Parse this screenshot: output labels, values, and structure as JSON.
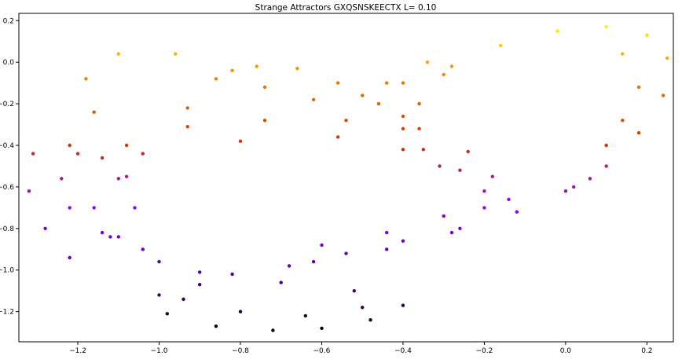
{
  "chart_data": {
    "type": "scatter",
    "title": "Strange Attractors     GXQSNSKEECTX     L= 0.10",
    "xlabel": "",
    "ylabel": "",
    "xlim": [
      -1.345,
      0.265
    ],
    "ylim": [
      -1.345,
      0.235
    ],
    "xticks": [
      {
        "value": -1.2,
        "label": "−1.2"
      },
      {
        "value": -1.0,
        "label": "−1.0"
      },
      {
        "value": -0.8,
        "label": "−0.8"
      },
      {
        "value": -0.6,
        "label": "−0.6"
      },
      {
        "value": -0.4,
        "label": "−0.4"
      },
      {
        "value": -0.2,
        "label": "−0.2"
      },
      {
        "value": 0.0,
        "label": "0.0"
      },
      {
        "value": 0.2,
        "label": "0.2"
      }
    ],
    "yticks": [
      {
        "value": 0.2,
        "label": "0.2"
      },
      {
        "value": 0.0,
        "label": "0.0"
      },
      {
        "value": -0.2,
        "label": "−0.2"
      },
      {
        "value": -0.4,
        "label": "−0.4"
      },
      {
        "value": -0.6,
        "label": "−0.6"
      },
      {
        "value": -0.8,
        "label": "−0.8"
      },
      {
        "value": -1.0,
        "label": "−1.0"
      },
      {
        "value": -1.2,
        "label": "−1.2"
      }
    ],
    "grid": false,
    "colormap": [
      "#000000",
      "#5a00a0",
      "#8c00ff",
      "#cc3300",
      "#ee7700",
      "#ffff00"
    ],
    "series": [
      {
        "points": [
          [
            -0.72,
            -1.29
          ],
          [
            -0.86,
            -1.27
          ],
          [
            -0.98,
            -1.21
          ],
          [
            -1.0,
            -1.12
          ],
          [
            -0.9,
            -1.07
          ],
          [
            -0.7,
            -1.06
          ],
          [
            -0.52,
            -1.1
          ],
          [
            -0.4,
            -1.17
          ],
          [
            -0.48,
            -1.24
          ],
          [
            -0.6,
            -1.28
          ],
          [
            -0.82,
            -1.02
          ],
          [
            -0.62,
            -0.96
          ],
          [
            -0.44,
            -0.9
          ],
          [
            -0.28,
            -0.82
          ],
          [
            -0.2,
            -0.7
          ],
          [
            -0.18,
            -0.55
          ],
          [
            -0.24,
            -0.43
          ],
          [
            -0.36,
            -0.32
          ],
          [
            -0.54,
            -0.28
          ],
          [
            -0.74,
            -0.28
          ],
          [
            -0.93,
            -0.31
          ],
          [
            -1.04,
            -0.44
          ],
          [
            -1.1,
            -0.56
          ],
          [
            -1.16,
            -0.7
          ],
          [
            -1.1,
            -0.84
          ],
          [
            -1.0,
            -0.96
          ],
          [
            -0.9,
            -1.01
          ],
          [
            -1.22,
            -0.94
          ],
          [
            -1.28,
            -0.8
          ],
          [
            -1.32,
            -0.62
          ],
          [
            -1.31,
            -0.44
          ],
          [
            -1.22,
            -0.4
          ],
          [
            -1.14,
            -0.46
          ],
          [
            -1.08,
            -0.55
          ],
          [
            -1.06,
            -0.7
          ],
          [
            -1.12,
            -0.84
          ],
          [
            -1.08,
            -0.4
          ],
          [
            -1.16,
            -0.24
          ],
          [
            -1.18,
            -0.08
          ],
          [
            -1.1,
            0.04
          ],
          [
            -0.96,
            0.04
          ],
          [
            -0.82,
            -0.04
          ],
          [
            -0.74,
            -0.12
          ],
          [
            -0.62,
            -0.18
          ],
          [
            -0.5,
            -0.16
          ],
          [
            -0.4,
            -0.1
          ],
          [
            -0.28,
            -0.02
          ],
          [
            -0.16,
            0.08
          ],
          [
            -0.02,
            0.15
          ],
          [
            0.1,
            0.17
          ],
          [
            0.2,
            0.13
          ],
          [
            0.25,
            0.02
          ],
          [
            0.24,
            -0.16
          ],
          [
            0.18,
            -0.34
          ],
          [
            0.1,
            -0.5
          ],
          [
            0.0,
            -0.62
          ],
          [
            -0.12,
            -0.72
          ],
          [
            -0.26,
            -0.8
          ],
          [
            -0.4,
            -0.86
          ],
          [
            -0.54,
            -0.92
          ],
          [
            -0.68,
            -0.98
          ],
          [
            -0.93,
            -0.22
          ],
          [
            -0.86,
            -0.08
          ],
          [
            -0.76,
            -0.02
          ],
          [
            -0.66,
            -0.03
          ],
          [
            -0.56,
            -0.1
          ],
          [
            -0.46,
            -0.2
          ],
          [
            -0.4,
            -0.32
          ],
          [
            -0.35,
            -0.42
          ],
          [
            -0.31,
            -0.5
          ],
          [
            -0.36,
            -0.2
          ],
          [
            -0.3,
            -0.06
          ],
          [
            -0.34,
            0.0
          ],
          [
            -0.44,
            -0.1
          ],
          [
            -0.4,
            -0.26
          ],
          [
            0.14,
            0.04
          ],
          [
            0.18,
            -0.12
          ],
          [
            0.14,
            -0.28
          ],
          [
            0.1,
            -0.4
          ],
          [
            0.06,
            -0.56
          ],
          [
            -1.2,
            -0.44
          ],
          [
            -1.24,
            -0.56
          ],
          [
            -1.22,
            -0.7
          ],
          [
            -1.14,
            -0.82
          ],
          [
            -1.04,
            -0.9
          ],
          [
            -0.94,
            -1.14
          ],
          [
            -0.8,
            -1.2
          ],
          [
            -0.64,
            -1.22
          ],
          [
            -0.5,
            -1.18
          ],
          [
            -0.2,
            -0.62
          ],
          [
            -0.26,
            -0.52
          ],
          [
            -0.4,
            -0.42
          ],
          [
            -0.56,
            -0.36
          ],
          [
            -0.8,
            -0.38
          ],
          [
            -0.6,
            -0.88
          ],
          [
            -0.44,
            -0.82
          ],
          [
            -0.3,
            -0.74
          ],
          [
            -0.14,
            -0.66
          ],
          [
            0.02,
            -0.6
          ]
        ]
      }
    ]
  }
}
